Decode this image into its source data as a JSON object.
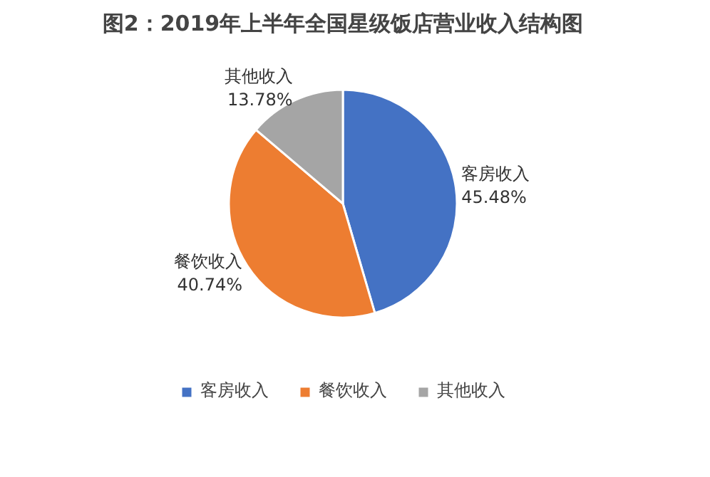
{
  "chart_data": {
    "type": "pie",
    "title": "图2：2019年上半年全国星级饭店营业收入结构图",
    "categories": [
      "客房收入",
      "餐饮收入",
      "其他收入"
    ],
    "values": [
      45.48,
      40.74,
      13.78
    ],
    "value_labels": [
      "45.48%",
      "40.74%",
      "13.78%"
    ],
    "colors": [
      "#4472c4",
      "#ed7d31",
      "#a5a5a5"
    ],
    "legend": "bottom"
  }
}
